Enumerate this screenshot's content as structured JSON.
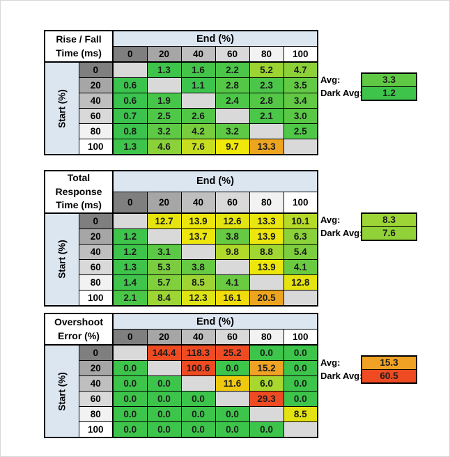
{
  "palette": {
    "sheet_bg": "#FFFFFF",
    "frame_gray": "#D6D6D6",
    "band_blue": "#DCE6F1",
    "diagonal_gray": "#D9D9D9",
    "border_black": "#000000",
    "header_gradient": [
      "#7F7F7F",
      "#A6A6A6",
      "#BFBFBF",
      "#D9D9D9",
      "#F2F2F2",
      "#FFFFFF"
    ],
    "scale_green": "#3DC44B",
    "scale_yellow": "#EDE60C",
    "scale_orange": "#F0A225",
    "scale_red": "#EE4B23"
  },
  "chart_data": [
    {
      "type": "heatmap",
      "title_line1": "Rise / Fall",
      "title_line2": "Time (ms)",
      "col_axis_label": "End (%)",
      "row_axis_label": "Start (%)",
      "columns": [
        "0",
        "20",
        "40",
        "60",
        "80",
        "100"
      ],
      "rows": [
        "0",
        "20",
        "40",
        "60",
        "80",
        "100"
      ],
      "values": [
        [
          "",
          "1.3",
          "1.6",
          "2.2",
          "5.2",
          "4.7"
        ],
        [
          "0.6",
          "",
          "1.1",
          "2.8",
          "2.3",
          "3.5"
        ],
        [
          "0.6",
          "1.9",
          "",
          "2.4",
          "2.8",
          "3.4"
        ],
        [
          "0.7",
          "2.5",
          "2.6",
          "",
          "2.1",
          "3.0"
        ],
        [
          "0.8",
          "3.2",
          "4.2",
          "3.2",
          "",
          "2.5"
        ],
        [
          "1.3",
          "4.6",
          "7.6",
          "9.7",
          "13.3",
          ""
        ]
      ],
      "cell_colors": [
        [
          null,
          "#3FC44B",
          "#44C54A",
          "#4BC648",
          "#9CD532",
          "#8DD139"
        ],
        [
          "#3AC34D",
          null,
          "#3DC44C",
          "#54C747",
          "#4CC648",
          "#63CA43"
        ],
        [
          "#3AC34D",
          "#47C549",
          null,
          "#4DC748",
          "#54C747",
          "#61C944"
        ],
        [
          "#3BC34D",
          "#4FC747",
          "#51C747",
          null,
          "#4AC648",
          "#59C845"
        ],
        [
          "#3BC34D",
          "#5DC945",
          "#77CD3D",
          "#5DC945",
          null,
          "#4FC747"
        ],
        [
          "#3FC44B",
          "#8AD13A",
          "#C6DE1F",
          "#F0E70B",
          "#EDA51F",
          null
        ]
      ],
      "avg": {
        "label": "Avg:",
        "value": "3.3",
        "color": "#60C944"
      },
      "dark_avg": {
        "label": "Dark Avg:",
        "value": "1.2",
        "color": "#3EC44B"
      }
    },
    {
      "type": "heatmap",
      "title_line1": "Total Response",
      "title_line2": "Time (ms)",
      "col_axis_label": "End (%)",
      "row_axis_label": "Start (%)",
      "columns": [
        "0",
        "20",
        "40",
        "60",
        "80",
        "100"
      ],
      "rows": [
        "0",
        "20",
        "40",
        "60",
        "80",
        "100"
      ],
      "values": [
        [
          "",
          "12.7",
          "13.9",
          "12.6",
          "13.3",
          "10.1"
        ],
        [
          "1.2",
          "",
          "13.7",
          "3.8",
          "13.9",
          "6.3"
        ],
        [
          "1.2",
          "3.1",
          "",
          "9.8",
          "8.8",
          "5.4"
        ],
        [
          "1.3",
          "5.3",
          "3.8",
          "",
          "13.9",
          "4.1"
        ],
        [
          "1.4",
          "5.7",
          "8.5",
          "4.1",
          "",
          "12.8"
        ],
        [
          "2.1",
          "8.4",
          "12.3",
          "16.1",
          "20.5",
          ""
        ]
      ],
      "cell_colors": [
        [
          null,
          "#E6E410",
          "#EDE60C",
          "#E3E412",
          "#E9E50F",
          "#B5DA28"
        ],
        [
          "#3EC44B",
          null,
          "#ECE60D",
          "#66CA42",
          "#EDE60C",
          "#8BD23A"
        ],
        [
          "#3EC44B",
          "#5BC945",
          null,
          "#B0D92A",
          "#A2D631",
          "#7CCE3E"
        ],
        [
          "#3FC44B",
          "#7ACD3F",
          "#66CA42",
          null,
          "#EDE60C",
          "#6ACB41"
        ],
        [
          "#40C44B",
          "#80CF3D",
          "#9ED535",
          "#6ACB41",
          null,
          "#E5E411"
        ],
        [
          "#4AC648",
          "#9DD535",
          "#DEE315",
          "#F0DC0D",
          "#EDA51F",
          null
        ]
      ],
      "avg": {
        "label": "Avg:",
        "value": "8.3",
        "color": "#9CD535"
      },
      "dark_avg": {
        "label": "Dark Avg:",
        "value": "7.6",
        "color": "#90D238"
      }
    },
    {
      "type": "heatmap",
      "title_line1": "Overshoot",
      "title_line2": "Error (%)",
      "col_axis_label": "End (%)",
      "row_axis_label": "Start (%)",
      "columns": [
        "0",
        "20",
        "40",
        "60",
        "80",
        "100"
      ],
      "rows": [
        "0",
        "20",
        "40",
        "60",
        "80",
        "100"
      ],
      "values": [
        [
          "",
          "144.4",
          "118.3",
          "25.2",
          "0.0",
          "0.0"
        ],
        [
          "0.0",
          "",
          "100.6",
          "0.0",
          "15.2",
          "0.0"
        ],
        [
          "0.0",
          "0.0",
          "",
          "11.6",
          "6.0",
          "0.0"
        ],
        [
          "0.0",
          "0.0",
          "0.0",
          "",
          "29.3",
          "0.0"
        ],
        [
          "0.0",
          "0.0",
          "0.0",
          "0.0",
          "",
          "8.5"
        ],
        [
          "0.0",
          "0.0",
          "0.0",
          "0.0",
          "0.0",
          ""
        ]
      ],
      "cell_colors": [
        [
          null,
          "#EE4B23",
          "#EE4B23",
          "#EE4B23",
          "#3DC44B",
          "#3DC44B"
        ],
        [
          "#3DC44B",
          null,
          "#EE4B23",
          "#3DC44B",
          "#F0A225",
          "#3DC44B"
        ],
        [
          "#3DC44B",
          "#3DC44B",
          null,
          "#EFC90E",
          "#A8D72D",
          "#3DC44B"
        ],
        [
          "#3DC44B",
          "#3DC44B",
          "#3DC44B",
          null,
          "#EE4B23",
          "#3DC44B"
        ],
        [
          "#3DC44B",
          "#3DC44B",
          "#3DC44B",
          "#3DC44B",
          null,
          "#E3E312"
        ],
        [
          "#3DC44B",
          "#3DC44B",
          "#3DC44B",
          "#3DC44B",
          "#3DC44B",
          null
        ]
      ],
      "avg": {
        "label": "Avg:",
        "value": "15.3",
        "color": "#F0A225"
      },
      "dark_avg": {
        "label": "Dark Avg:",
        "value": "60.5",
        "color": "#EE4B23"
      }
    }
  ]
}
